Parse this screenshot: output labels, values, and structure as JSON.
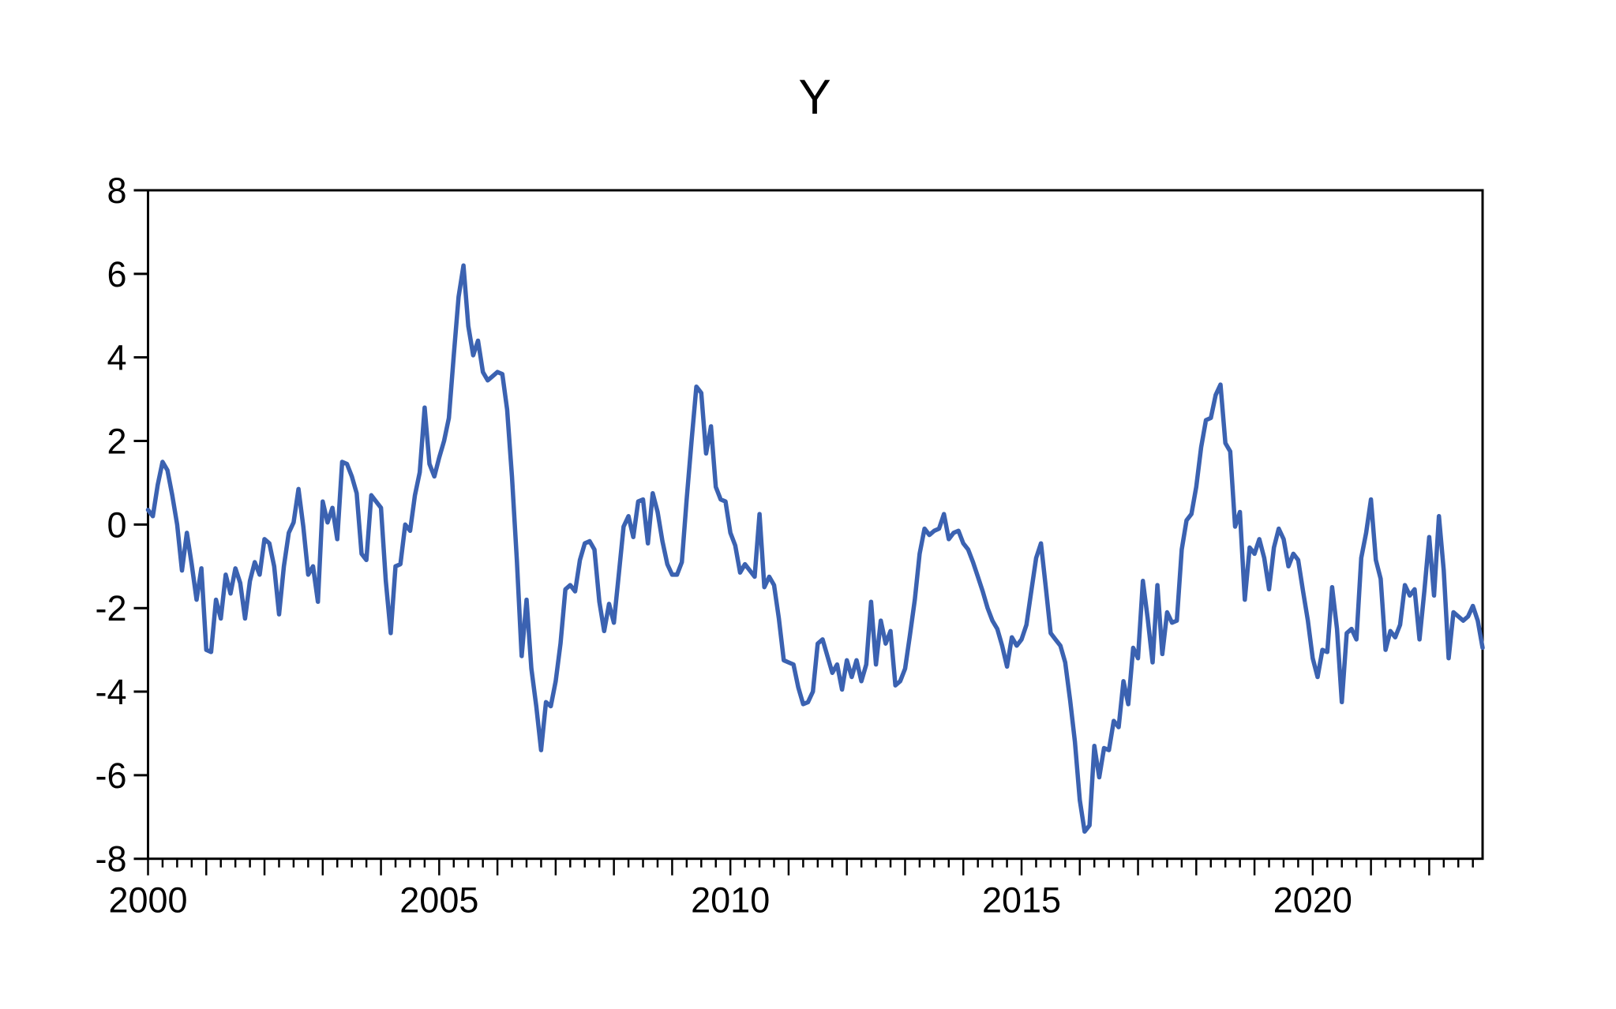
{
  "title": "Y",
  "colors": {
    "line": "#3b62b1",
    "axis": "#000000",
    "background": "#ffffff"
  },
  "chart_data": {
    "type": "line",
    "series_name": "Y",
    "frequency": "monthly",
    "start_period": "2000M01",
    "end_period": "2022M12",
    "title": "Y",
    "xlabel": "",
    "ylabel": "",
    "grid": false,
    "legend_position": "none",
    "ylim": [
      -8,
      8
    ],
    "y_tick_values": [
      8,
      6,
      4,
      2,
      0,
      -2,
      -4,
      -6,
      -8
    ],
    "y_tick_labels": [
      "8",
      "6",
      "4",
      "2",
      "0",
      "-2",
      "-4",
      "-6",
      "-8"
    ],
    "x_tick_years": [
      2000,
      2005,
      2010,
      2015,
      2020
    ],
    "x_tick_labels": [
      "2000",
      "2005",
      "2010",
      "2015",
      "2020"
    ],
    "minor_tick_interval_months": 3,
    "major_tick_interval_months": 12,
    "values": [
      0.35,
      0.2,
      0.95,
      1.5,
      1.3,
      0.7,
      0,
      -1.1,
      -0.2,
      -0.95,
      -1.8,
      -1.05,
      -3,
      -3.05,
      -1.8,
      -2.25,
      -1.2,
      -1.65,
      -1.05,
      -1.4,
      -2.25,
      -1.35,
      -0.9,
      -1.2,
      -0.35,
      -0.45,
      -1,
      -2.15,
      -1,
      -0.2,
      0.05,
      0.85,
      -0.05,
      -1.2,
      -1,
      -1.85,
      0.55,
      0.05,
      0.4,
      -0.35,
      1.5,
      1.45,
      1.15,
      0.75,
      -0.7,
      -0.85,
      0.7,
      0.55,
      0.4,
      -1.35,
      -2.6,
      -1,
      -0.95,
      0,
      -0.15,
      0.7,
      1.25,
      2.8,
      1.45,
      1.15,
      1.6,
      2,
      2.55,
      4.05,
      5.45,
      6.2,
      4.75,
      4.05,
      4.4,
      3.65,
      3.45,
      3.55,
      3.65,
      3.6,
      2.75,
      1.15,
      -0.85,
      -3.15,
      -1.8,
      -3.45,
      -4.35,
      -5.4,
      -4.25,
      -4.35,
      -3.75,
      -2.85,
      -1.55,
      -1.45,
      -1.6,
      -0.85,
      -0.45,
      -0.4,
      -0.6,
      -1.85,
      -2.55,
      -1.9,
      -2.35,
      -1.2,
      -0.05,
      0.2,
      -0.3,
      0.55,
      0.6,
      -0.45,
      0.75,
      0.3,
      -0.4,
      -0.95,
      -1.2,
      -1.2,
      -0.9,
      0.6,
      2,
      3.3,
      3.15,
      1.7,
      2.35,
      0.9,
      0.6,
      0.55,
      -0.2,
      -0.5,
      -1.15,
      -0.95,
      -1.1,
      -1.25,
      0.25,
      -1.5,
      -1.25,
      -1.45,
      -2.25,
      -3.25,
      -3.3,
      -3.35,
      -3.9,
      -4.3,
      -4.25,
      -4,
      -2.85,
      -2.75,
      -3.15,
      -3.55,
      -3.35,
      -3.95,
      -3.25,
      -3.65,
      -3.25,
      -3.75,
      -3.35,
      -1.85,
      -3.35,
      -2.3,
      -2.85,
      -2.55,
      -3.85,
      -3.75,
      -3.45,
      -2.65,
      -1.8,
      -0.7,
      -0.1,
      -0.25,
      -0.15,
      -0.1,
      0.25,
      -0.35,
      -0.2,
      -0.15,
      -0.45,
      -0.6,
      -0.9,
      -1.25,
      -1.6,
      -2,
      -2.3,
      -2.5,
      -2.9,
      -3.4,
      -2.7,
      -2.9,
      -2.75,
      -2.4,
      -1.6,
      -0.8,
      -0.45,
      -1.5,
      -2.6,
      -2.75,
      -2.9,
      -3.3,
      -4.2,
      -5.2,
      -6.6,
      -7.35,
      -7.2,
      -5.3,
      -6.05,
      -5.35,
      -5.4,
      -4.7,
      -4.85,
      -3.75,
      -4.3,
      -2.95,
      -3.2,
      -1.35,
      -2.25,
      -3.3,
      -1.45,
      -3.1,
      -2.1,
      -2.35,
      -2.3,
      -0.6,
      0.1,
      0.25,
      0.9,
      1.85,
      2.5,
      2.55,
      3.1,
      3.35,
      1.95,
      1.75,
      -0.05,
      0.3,
      -1.8,
      -0.55,
      -0.7,
      -0.35,
      -0.8,
      -1.55,
      -0.55,
      -0.1,
      -0.35,
      -1,
      -0.7,
      -0.85,
      -1.6,
      -2.3,
      -3.2,
      -3.65,
      -3,
      -3.05,
      -1.5,
      -2.5,
      -4.25,
      -2.6,
      -2.5,
      -2.75,
      -0.8,
      -0.2,
      0.6,
      -0.85,
      -1.3,
      -3,
      -2.55,
      -2.7,
      -2.4,
      -1.45,
      -1.7,
      -1.55,
      -2.75,
      -1.6,
      -0.3,
      -1.7,
      0.2,
      -1.1,
      -3.2,
      -2.1,
      -2.2,
      -2.3,
      -2.2,
      -1.95,
      -2.3,
      -2.95
    ]
  }
}
